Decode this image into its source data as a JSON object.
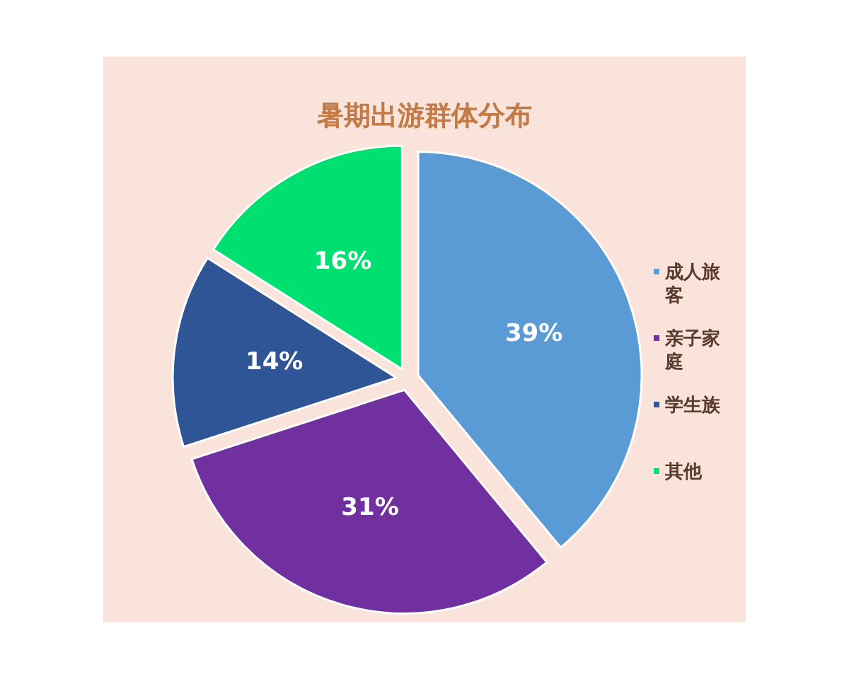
{
  "chart_data": {
    "type": "pie",
    "title": "暑期出游群体分布",
    "categories": [
      "成人旅客",
      "亲子家庭",
      "学生族",
      "其他"
    ],
    "values": [
      39,
      31,
      14,
      16
    ],
    "colors": [
      "#5b9bd5",
      "#7030a0",
      "#2f5597",
      "#00e070"
    ],
    "value_labels": [
      "39%",
      "31%",
      "14%",
      "16%"
    ],
    "legend": "right"
  }
}
